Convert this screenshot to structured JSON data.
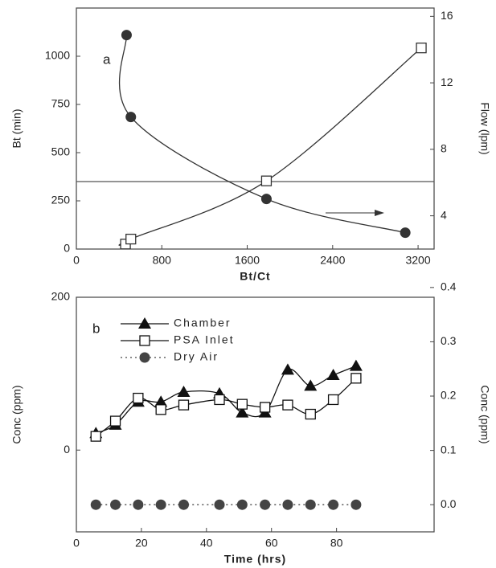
{
  "chart_data": [
    {
      "type": "scatter",
      "annotation": "a",
      "xlabel": "Bt/Ct",
      "ylabel": "Bt (min)",
      "y2label": "Flow (lpm)",
      "xlim": [
        0,
        3350
      ],
      "xticks": [
        0,
        800,
        1600,
        2400,
        3200
      ],
      "ylim": [
        0,
        1250
      ],
      "yticks": [
        0,
        250,
        500,
        750,
        1000
      ],
      "y2lim": [
        2,
        16.5
      ],
      "y2ticks": [
        4,
        8,
        12,
        16
      ],
      "hline": 350,
      "smooth": true,
      "legend": false,
      "series": [
        {
          "color": "#333333",
          "marker": "circle",
          "line_style": "solid",
          "axis": "y",
          "x": [
            470,
            510,
            1780,
            3080
          ],
          "values": [
            1110,
            685,
            260,
            85
          ]
        },
        {
          "color": "#333333",
          "marker": "square",
          "line_style": "solid",
          "axis": "y2",
          "x": [
            460,
            510,
            1780,
            3230
          ],
          "values": [
            2.3,
            2.6,
            6.1,
            14.1
          ]
        }
      ]
    },
    {
      "type": "line",
      "annotation": "b",
      "xlabel": "Time (hrs)",
      "ylabel": "Conc (ppm)",
      "y2label": "Conc (ppm)",
      "xlim": [
        0,
        110
      ],
      "xticks": [
        0,
        20,
        40,
        60,
        80
      ],
      "ylim": [
        -107,
        200
      ],
      "yticks": [
        0,
        200
      ],
      "y2lim": [
        -0.05,
        0.382
      ],
      "y2ticks": [
        {
          "value": 0,
          "label": "0.0"
        },
        0.1,
        0.2,
        0.3,
        0.4
      ],
      "smooth": true,
      "legend": true,
      "x": [
        6,
        12,
        19,
        26,
        33,
        44,
        51,
        58,
        65,
        72,
        79,
        86
      ],
      "series": [
        {
          "name": "Chamber",
          "color": "#111111",
          "marker": "triangle",
          "line_style": "solid",
          "axis": "y",
          "values": [
            22,
            33,
            63,
            63,
            76,
            74,
            49,
            49,
            105,
            84,
            98,
            110
          ]
        },
        {
          "name": "PSA Inlet",
          "color": "#111111",
          "marker": "square",
          "line_style": "solid",
          "axis": "y",
          "values": [
            18,
            38,
            68,
            53,
            59,
            66,
            60,
            56,
            59,
            47,
            66,
            94
          ]
        },
        {
          "name": "Dry Air",
          "color": "#444444",
          "marker": "circle",
          "line_style": "dotted",
          "axis": "y2",
          "values": [
            0,
            0,
            0,
            0,
            0,
            0,
            0,
            0,
            0,
            0,
            0,
            0
          ]
        }
      ]
    }
  ]
}
